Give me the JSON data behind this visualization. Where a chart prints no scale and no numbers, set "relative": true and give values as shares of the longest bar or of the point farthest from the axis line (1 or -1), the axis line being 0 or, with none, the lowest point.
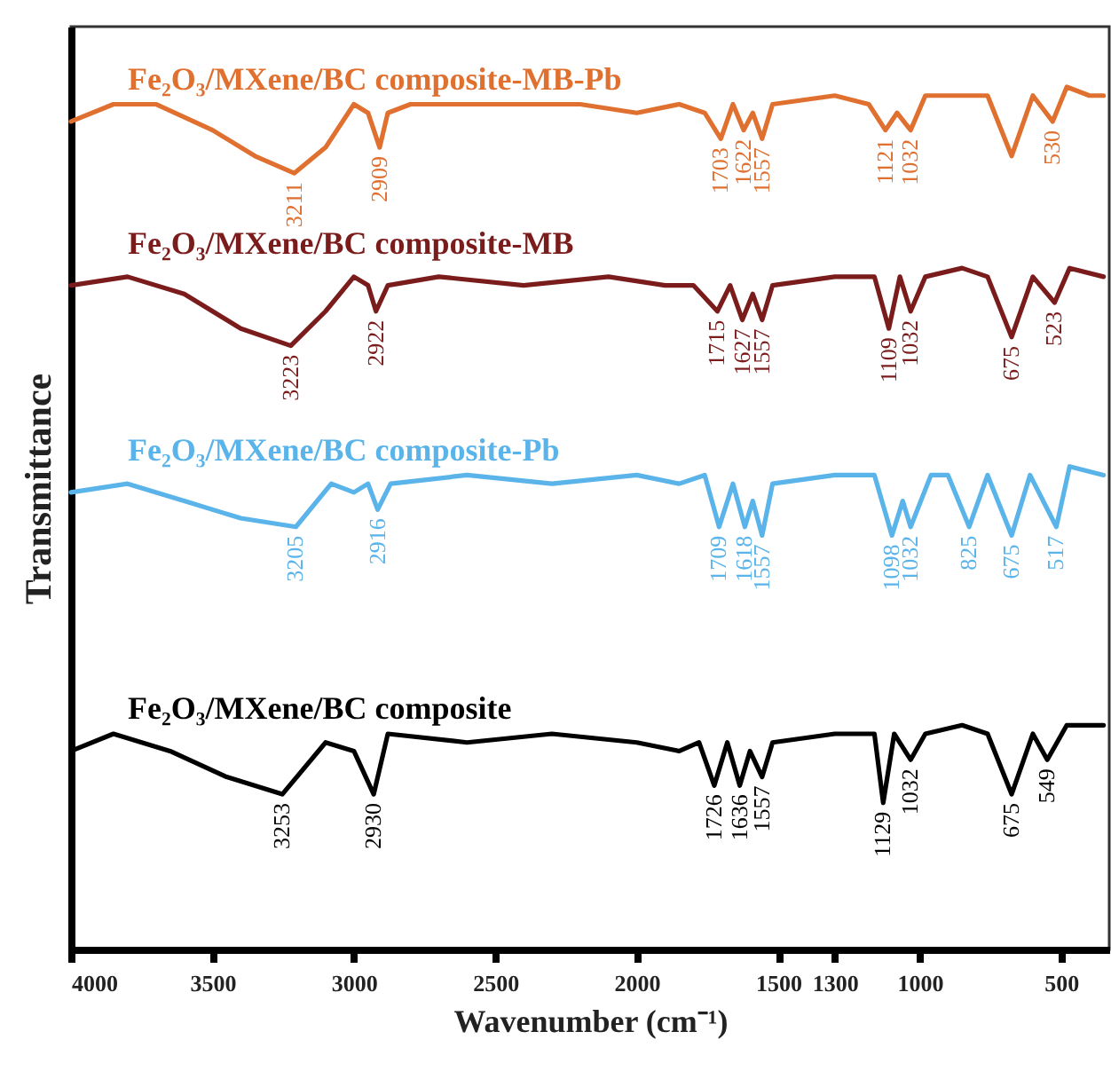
{
  "chart_data": {
    "type": "line",
    "relative": true,
    "xlabel": "Wavenumber (cm⁻¹)",
    "ylabel": "Transmittance",
    "xlim": [
      4000,
      330
    ],
    "xticks": [
      4000,
      3500,
      3000,
      2500,
      2000,
      1500,
      1300,
      1000,
      500
    ],
    "series": [
      {
        "name": "Fe₂O₃/MXene/BC composite-MB-Pb",
        "color": "#e07030",
        "x": [
          4000,
          3850,
          3700,
          3500,
          3350,
          3211,
          3100,
          3000,
          2950,
          2909,
          2880,
          2800,
          2500,
          2200,
          2000,
          1850,
          1760,
          1703,
          1660,
          1622,
          1590,
          1557,
          1520,
          1300,
          1180,
          1121,
          1080,
          1032,
          980,
          850,
          760,
          675,
          600,
          530,
          480,
          400,
          350
        ],
        "values": [
          0.96,
          0.98,
          0.98,
          0.95,
          0.92,
          0.9,
          0.93,
          0.98,
          0.97,
          0.93,
          0.97,
          0.98,
          0.98,
          0.98,
          0.97,
          0.98,
          0.97,
          0.94,
          0.98,
          0.95,
          0.97,
          0.94,
          0.98,
          0.99,
          0.98,
          0.95,
          0.97,
          0.95,
          0.99,
          0.99,
          0.99,
          0.92,
          0.99,
          0.96,
          1.0,
          0.99,
          0.99
        ]
      },
      {
        "name": "Fe₂O₃/MXene/BC composite-MB",
        "color": "#7b1c1c",
        "x": [
          4000,
          3800,
          3600,
          3400,
          3223,
          3100,
          3000,
          2950,
          2922,
          2880,
          2700,
          2400,
          2100,
          1900,
          1800,
          1715,
          1670,
          1627,
          1590,
          1557,
          1520,
          1300,
          1160,
          1109,
          1070,
          1032,
          980,
          850,
          760,
          675,
          600,
          523,
          470,
          350
        ],
        "values": [
          0.77,
          0.78,
          0.76,
          0.72,
          0.7,
          0.74,
          0.78,
          0.77,
          0.74,
          0.77,
          0.78,
          0.77,
          0.78,
          0.77,
          0.77,
          0.74,
          0.77,
          0.73,
          0.76,
          0.73,
          0.77,
          0.78,
          0.78,
          0.72,
          0.78,
          0.74,
          0.78,
          0.79,
          0.78,
          0.71,
          0.78,
          0.75,
          0.79,
          0.78
        ]
      },
      {
        "name": "Fe₂O₃/MXene/BC composite-Pb",
        "color": "#5ab4ea",
        "x": [
          4000,
          3800,
          3600,
          3400,
          3205,
          3080,
          3000,
          2950,
          2916,
          2870,
          2600,
          2300,
          2000,
          1850,
          1760,
          1709,
          1660,
          1618,
          1590,
          1557,
          1520,
          1300,
          1160,
          1098,
          1060,
          1032,
          960,
          900,
          825,
          760,
          675,
          610,
          517,
          470,
          350
        ],
        "values": [
          0.53,
          0.54,
          0.52,
          0.5,
          0.49,
          0.54,
          0.53,
          0.54,
          0.51,
          0.54,
          0.55,
          0.54,
          0.55,
          0.54,
          0.55,
          0.49,
          0.54,
          0.49,
          0.52,
          0.48,
          0.54,
          0.55,
          0.55,
          0.48,
          0.52,
          0.49,
          0.55,
          0.55,
          0.49,
          0.55,
          0.48,
          0.55,
          0.49,
          0.56,
          0.55
        ]
      },
      {
        "name": "Fe₂O₃/MXene/BC composite",
        "color": "#000000",
        "x": [
          4000,
          3850,
          3650,
          3450,
          3253,
          3100,
          3000,
          2930,
          2880,
          2600,
          2300,
          2000,
          1850,
          1780,
          1726,
          1680,
          1636,
          1600,
          1557,
          1520,
          1300,
          1160,
          1129,
          1090,
          1032,
          980,
          850,
          760,
          675,
          600,
          549,
          480,
          350
        ],
        "values": [
          0.23,
          0.25,
          0.23,
          0.2,
          0.18,
          0.24,
          0.23,
          0.18,
          0.25,
          0.24,
          0.25,
          0.24,
          0.23,
          0.24,
          0.19,
          0.24,
          0.19,
          0.23,
          0.2,
          0.24,
          0.25,
          0.25,
          0.17,
          0.25,
          0.22,
          0.25,
          0.26,
          0.25,
          0.18,
          0.25,
          0.22,
          0.26,
          0.26
        ]
      }
    ],
    "annotations": [
      {
        "text": "3211",
        "x": 3211,
        "y": 0.9
      },
      {
        "text": "2909",
        "x": 2909,
        "y": 0.93
      },
      {
        "text": "1703",
        "x": 1703,
        "y": 0.94
      },
      {
        "text": "1622",
        "x": 1622,
        "y": 0.95
      },
      {
        "text": "1557",
        "x": 1557,
        "y": 0.94
      },
      {
        "text": "1121",
        "x": 1121,
        "y": 0.95
      },
      {
        "text": "1032",
        "x": 1032,
        "y": 0.95
      },
      {
        "text": "530",
        "x": 530,
        "y": 0.96
      },
      {
        "text": "3223",
        "x": 3223,
        "y": 0.7
      },
      {
        "text": "2922",
        "x": 2922,
        "y": 0.74
      },
      {
        "text": "1715",
        "x": 1715,
        "y": 0.74
      },
      {
        "text": "1627",
        "x": 1627,
        "y": 0.73
      },
      {
        "text": "1557",
        "x": 1557,
        "y": 0.73
      },
      {
        "text": "1109",
        "x": 1109,
        "y": 0.72
      },
      {
        "text": "1032",
        "x": 1032,
        "y": 0.74
      },
      {
        "text": "675",
        "x": 675,
        "y": 0.71
      },
      {
        "text": "523",
        "x": 523,
        "y": 0.75
      },
      {
        "text": "3205",
        "x": 3205,
        "y": 0.49
      },
      {
        "text": "2916",
        "x": 2916,
        "y": 0.51
      },
      {
        "text": "1709",
        "x": 1709,
        "y": 0.49
      },
      {
        "text": "1618",
        "x": 1618,
        "y": 0.49
      },
      {
        "text": "1557",
        "x": 1557,
        "y": 0.48
      },
      {
        "text": "1098",
        "x": 1098,
        "y": 0.48
      },
      {
        "text": "1032",
        "x": 1032,
        "y": 0.49
      },
      {
        "text": "825",
        "x": 825,
        "y": 0.49
      },
      {
        "text": "675",
        "x": 675,
        "y": 0.48
      },
      {
        "text": "517",
        "x": 517,
        "y": 0.49
      },
      {
        "text": "3253",
        "x": 3253,
        "y": 0.18
      },
      {
        "text": "2930",
        "x": 2930,
        "y": 0.18
      },
      {
        "text": "1726",
        "x": 1726,
        "y": 0.19
      },
      {
        "text": "1636",
        "x": 1636,
        "y": 0.19
      },
      {
        "text": "1557",
        "x": 1557,
        "y": 0.2
      },
      {
        "text": "1129",
        "x": 1129,
        "y": 0.17
      },
      {
        "text": "1032",
        "x": 1032,
        "y": 0.22
      },
      {
        "text": "675",
        "x": 675,
        "y": 0.18
      },
      {
        "text": "549",
        "x": 549,
        "y": 0.22
      }
    ]
  }
}
